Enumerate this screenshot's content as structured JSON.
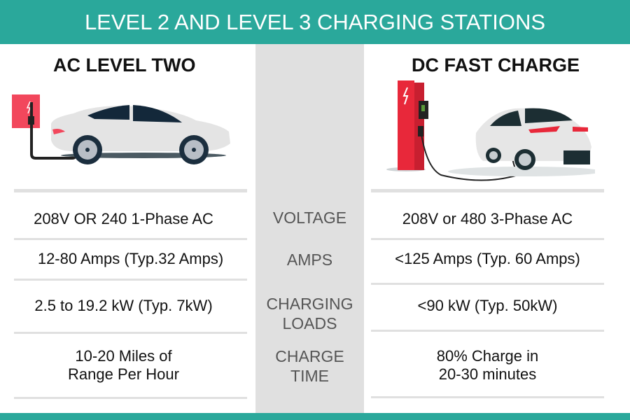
{
  "header": {
    "title": "LEVEL 2 AND LEVEL 3 CHARGING STATIONS"
  },
  "left": {
    "title": "AC LEVEL TWO",
    "rows": [
      "208V OR 240 1-Phase AC",
      "12-80 Amps (Typ.32 Amps)",
      "2.5 to 19.2 kW (Typ. 7kW)",
      "10-20 Miles of\nRange Per Hour"
    ]
  },
  "labels": [
    "VOLTAGE",
    "AMPS",
    "CHARGING\nLOADS",
    "CHARGE\nTIME"
  ],
  "right": {
    "title": "DC FAST CHARGE",
    "rows": [
      "208V or 480 3-Phase AC",
      "<125 Amps (Typ. 60 Amps)",
      "<90 kW (Typ. 50kW)",
      "80% Charge in\n20-30 minutes"
    ]
  },
  "colors": {
    "accent": "#2aa89b",
    "charger_red": "#e8283a",
    "divider": "#e0e0e0"
  }
}
